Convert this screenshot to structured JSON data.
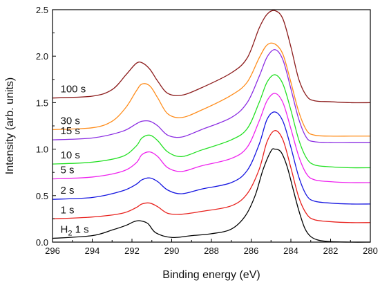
{
  "chart_data": {
    "type": "line",
    "title": "",
    "xlabel": "Binding energy (eV)",
    "ylabel": "Intensity (arb. units)",
    "xlim": [
      296,
      280
    ],
    "ylim": [
      0.0,
      2.5
    ],
    "x_reversed": true,
    "x_ticks": [
      "296",
      "294",
      "292",
      "290",
      "288",
      "286",
      "284",
      "282",
      "280"
    ],
    "y_ticks": [
      "0.0",
      "0.5",
      "1.0",
      "1.5",
      "2.0",
      "2.5"
    ],
    "grid": false,
    "legend": "none",
    "series": [
      {
        "name": "H2 1 s",
        "label_main": "H",
        "label_sub": "2",
        "label_tail": " 1 s",
        "color": "#000000",
        "x": [
          296,
          294,
          293,
          292.3,
          291.9,
          291.6,
          291.2,
          290.8,
          290.0,
          289.0,
          288.0,
          287.0,
          286.3,
          285.8,
          285.4,
          285.0,
          284.8,
          284.5,
          284.2,
          283.9,
          283.6,
          283.3,
          283.0,
          282.6,
          282.0,
          281.0,
          280.0
        ],
        "y": [
          0.04,
          0.07,
          0.13,
          0.18,
          0.22,
          0.23,
          0.2,
          0.1,
          0.05,
          0.07,
          0.09,
          0.14,
          0.28,
          0.5,
          0.78,
          0.98,
          1.0,
          0.97,
          0.82,
          0.58,
          0.34,
          0.15,
          0.06,
          0.02,
          0.005,
          0.0,
          0.0
        ]
      },
      {
        "name": "1 s",
        "color": "#e8201c",
        "x": [
          296,
          294,
          292.5,
          291.8,
          291.5,
          291.1,
          290.7,
          290.2,
          289.5,
          288.5,
          287.0,
          286.2,
          285.6,
          285.2,
          284.8,
          284.4,
          284.0,
          283.6,
          283.2,
          282.8,
          282.0,
          281.0,
          280.0
        ],
        "y": [
          0.25,
          0.27,
          0.31,
          0.37,
          0.41,
          0.42,
          0.38,
          0.31,
          0.3,
          0.33,
          0.39,
          0.52,
          0.78,
          1.08,
          1.2,
          1.1,
          0.8,
          0.48,
          0.3,
          0.24,
          0.22,
          0.21,
          0.21
        ]
      },
      {
        "name": "2 s",
        "color": "#1414e0",
        "x": [
          296,
          294,
          292.5,
          291.8,
          291.5,
          291.1,
          290.7,
          290.2,
          289.5,
          288.5,
          287.0,
          286.2,
          285.6,
          285.2,
          284.8,
          284.4,
          284.0,
          283.6,
          283.2,
          282.8,
          282.0,
          281.0,
          280.0
        ],
        "y": [
          0.46,
          0.48,
          0.55,
          0.62,
          0.67,
          0.69,
          0.65,
          0.56,
          0.52,
          0.57,
          0.64,
          0.77,
          1.05,
          1.32,
          1.4,
          1.3,
          1.02,
          0.7,
          0.5,
          0.44,
          0.42,
          0.41,
          0.41
        ]
      },
      {
        "name": "5 s",
        "color": "#ee22ee",
        "x": [
          296,
          294,
          292.5,
          291.8,
          291.5,
          291.1,
          290.7,
          290.2,
          289.5,
          288.5,
          287.0,
          286.2,
          285.6,
          285.2,
          284.8,
          284.4,
          284.0,
          283.6,
          283.2,
          282.8,
          282.0,
          281.0,
          280.0
        ],
        "y": [
          0.68,
          0.7,
          0.76,
          0.85,
          0.94,
          0.97,
          0.92,
          0.8,
          0.76,
          0.82,
          0.9,
          1.02,
          1.3,
          1.52,
          1.6,
          1.5,
          1.22,
          0.92,
          0.73,
          0.67,
          0.65,
          0.64,
          0.64
        ]
      },
      {
        "name": "10 s",
        "color": "#22e022",
        "x": [
          296,
          294,
          292.5,
          291.8,
          291.5,
          291.1,
          290.7,
          290.2,
          289.5,
          288.5,
          287.0,
          286.2,
          285.6,
          285.2,
          284.8,
          284.4,
          284.0,
          283.6,
          283.2,
          282.8,
          282.0,
          281.0,
          280.0
        ],
        "y": [
          0.84,
          0.86,
          0.92,
          1.03,
          1.12,
          1.15,
          1.09,
          0.97,
          0.92,
          0.99,
          1.1,
          1.22,
          1.5,
          1.72,
          1.8,
          1.7,
          1.42,
          1.1,
          0.9,
          0.83,
          0.81,
          0.8,
          0.8
        ]
      },
      {
        "name": "15 s",
        "color": "#8a2be2",
        "x": [
          296,
          294,
          292.5,
          291.8,
          291.5,
          291.1,
          290.7,
          290.2,
          289.5,
          288.5,
          287.0,
          286.2,
          285.6,
          285.2,
          284.8,
          284.4,
          284.0,
          283.6,
          283.2,
          282.8,
          282.0,
          281.0,
          280.0
        ],
        "y": [
          1.1,
          1.12,
          1.19,
          1.27,
          1.3,
          1.3,
          1.25,
          1.15,
          1.13,
          1.21,
          1.34,
          1.5,
          1.78,
          1.99,
          2.07,
          1.96,
          1.65,
          1.32,
          1.12,
          1.08,
          1.07,
          1.07,
          1.07
        ]
      },
      {
        "name": "30 s",
        "color": "#ff8c1a",
        "x": [
          296,
          294,
          293.0,
          292.3,
          291.8,
          291.5,
          291.1,
          290.7,
          290.2,
          289.5,
          288.5,
          287.0,
          286.2,
          285.6,
          285.2,
          284.8,
          284.4,
          284.0,
          283.6,
          283.2,
          282.8,
          282.0,
          281.0,
          280.0
        ],
        "y": [
          1.21,
          1.23,
          1.3,
          1.45,
          1.62,
          1.7,
          1.68,
          1.55,
          1.38,
          1.34,
          1.42,
          1.58,
          1.72,
          1.98,
          2.12,
          2.13,
          2.02,
          1.72,
          1.4,
          1.2,
          1.15,
          1.14,
          1.14,
          1.14
        ]
      },
      {
        "name": "100 s",
        "color": "#8b1a1a",
        "x": [
          296,
          294,
          293.0,
          292.3,
          291.8,
          291.5,
          291.1,
          290.7,
          290.2,
          289.5,
          288.5,
          287.0,
          286.2,
          285.6,
          285.2,
          284.8,
          284.4,
          284.0,
          283.6,
          283.2,
          282.8,
          282.0,
          281.0,
          280.0
        ],
        "y": [
          1.55,
          1.57,
          1.64,
          1.8,
          1.92,
          1.93,
          1.86,
          1.73,
          1.6,
          1.58,
          1.66,
          1.82,
          1.98,
          2.3,
          2.45,
          2.49,
          2.4,
          2.1,
          1.75,
          1.57,
          1.52,
          1.51,
          1.5,
          1.5
        ]
      }
    ]
  }
}
